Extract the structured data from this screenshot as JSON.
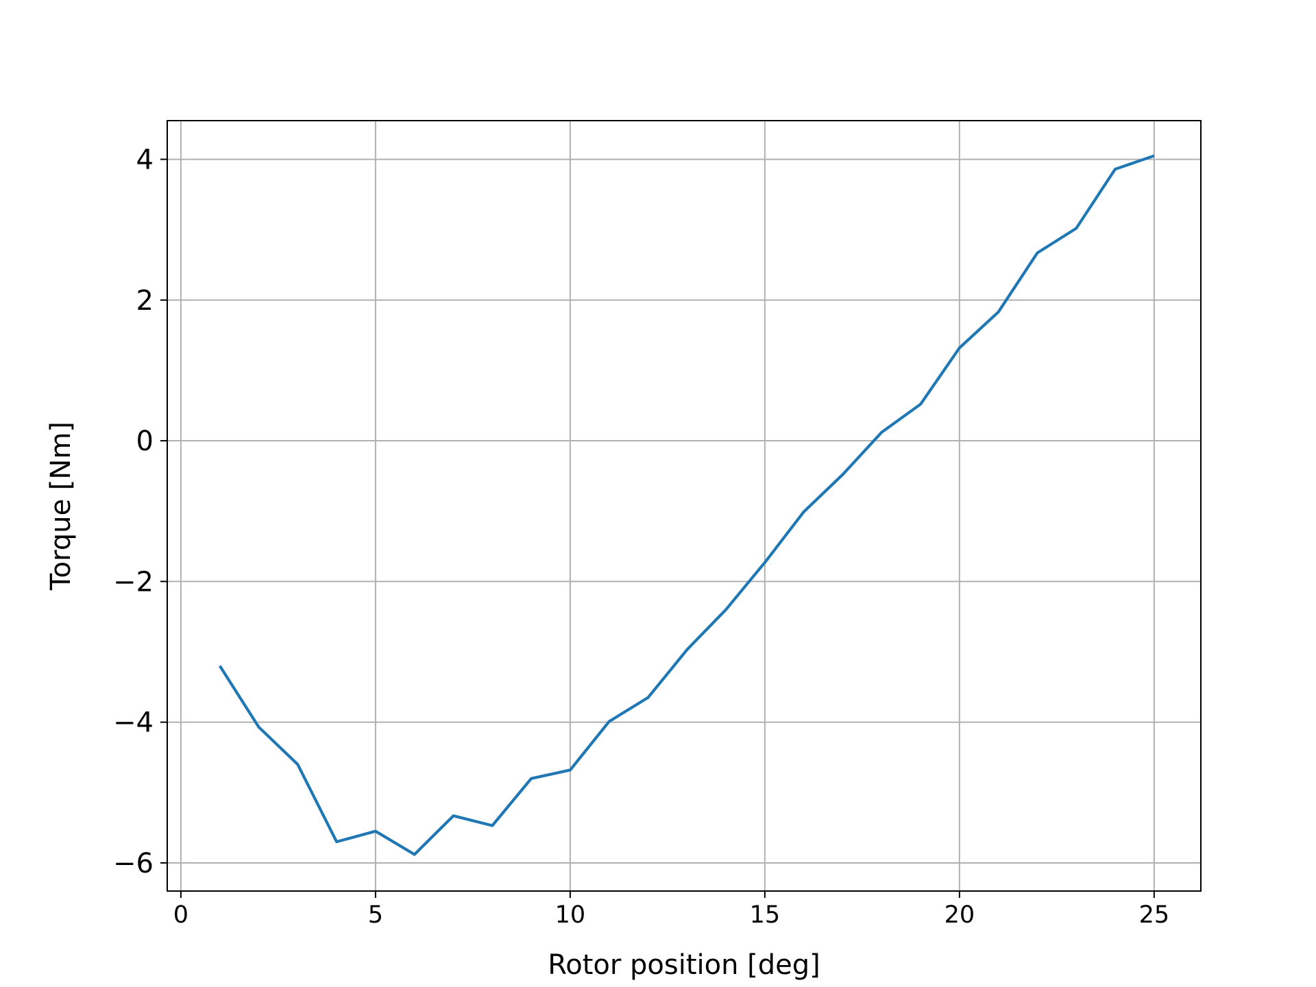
{
  "chart_data": {
    "type": "line",
    "title": "",
    "xlabel": "Rotor position [deg]",
    "ylabel": "Torque [Nm]",
    "xlim": [
      -0.35,
      26.2
    ],
    "ylim": [
      -6.4,
      4.55
    ],
    "xticks": [
      0,
      5,
      10,
      15,
      20,
      25
    ],
    "xtick_labels": [
      "0",
      "5",
      "10",
      "15",
      "20",
      "25"
    ],
    "yticks": [
      -6,
      -4,
      -2,
      0,
      2,
      4
    ],
    "ytick_labels": [
      "−6",
      "−4",
      "−2",
      "0",
      "2",
      "4"
    ],
    "grid": true,
    "legend": null,
    "series": [
      {
        "name": "Torque",
        "color": "#1f77b4",
        "x": [
          1,
          2,
          3,
          4,
          5,
          6,
          7,
          8,
          9,
          10,
          11,
          12,
          13,
          14,
          15,
          16,
          17,
          18,
          19,
          20,
          21,
          22,
          23,
          24,
          25
        ],
        "y": [
          -3.2,
          -4.07,
          -4.6,
          -5.7,
          -5.55,
          -5.88,
          -5.33,
          -5.47,
          -4.8,
          -4.68,
          -3.99,
          -3.65,
          -2.97,
          -2.4,
          -1.73,
          -1.01,
          -0.48,
          0.12,
          0.52,
          1.32,
          1.83,
          2.67,
          3.02,
          3.86,
          4.05
        ]
      }
    ]
  }
}
